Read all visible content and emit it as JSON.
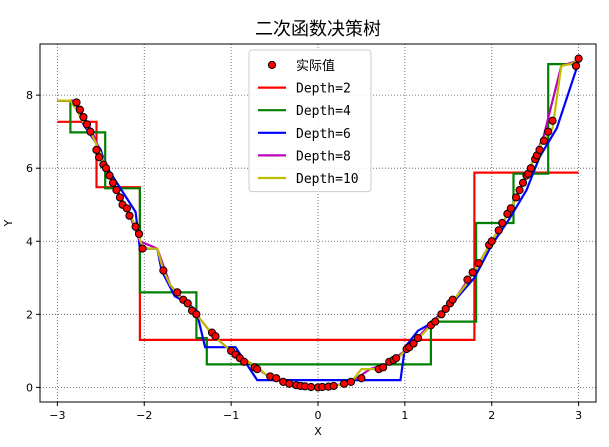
{
  "chart_data": {
    "type": "line",
    "title": "二次函数决策树",
    "xlabel": "X",
    "ylabel": "Y",
    "xlim": [
      -3.2,
      3.2
    ],
    "ylim": [
      -0.4,
      9.4
    ],
    "xticks": [
      -3,
      -2,
      -1,
      0,
      1,
      2,
      3
    ],
    "yticks": [
      0,
      2,
      4,
      6,
      8
    ],
    "grid": true,
    "legend_position": "top-center",
    "scatter": {
      "name": "实际值",
      "color": "#ff0000",
      "edge_color": "#000000",
      "x": [
        -2.78,
        -2.74,
        -2.7,
        -2.66,
        -2.62,
        -2.55,
        -2.52,
        -2.47,
        -2.44,
        -2.4,
        -2.36,
        -2.32,
        -2.28,
        -2.25,
        -2.2,
        -2.17,
        -2.1,
        -2.06,
        -2.02,
        -1.78,
        -1.62,
        -1.55,
        -1.5,
        -1.45,
        -1.4,
        -1.22,
        -1.18,
        -1.0,
        -0.95,
        -0.9,
        -0.85,
        -0.73,
        -0.7,
        -0.55,
        -0.48,
        -0.4,
        -0.33,
        -0.25,
        -0.2,
        -0.15,
        -0.08,
        0.0,
        0.05,
        0.12,
        0.18,
        0.3,
        0.38,
        0.5,
        0.7,
        0.75,
        0.82,
        0.87,
        0.9,
        1.02,
        1.05,
        1.1,
        1.15,
        1.3,
        1.35,
        1.42,
        1.47,
        1.52,
        1.55,
        1.72,
        1.78,
        1.85,
        1.97,
        2.0,
        2.08,
        2.12,
        2.18,
        2.22,
        2.28,
        2.32,
        2.36,
        2.4,
        2.42,
        2.45,
        2.5,
        2.52,
        2.55,
        2.6,
        2.65,
        2.7,
        2.97,
        3.0
      ],
      "y": [
        7.8,
        7.6,
        7.4,
        7.2,
        7.0,
        6.5,
        6.3,
        6.1,
        6.0,
        5.8,
        5.6,
        5.4,
        5.2,
        5.0,
        4.9,
        4.7,
        4.4,
        4.2,
        3.8,
        3.2,
        2.6,
        2.4,
        2.3,
        2.1,
        2.0,
        1.5,
        1.4,
        1.0,
        0.9,
        0.8,
        0.7,
        0.55,
        0.5,
        0.3,
        0.25,
        0.15,
        0.1,
        0.06,
        0.04,
        0.03,
        0.01,
        0.0,
        0.01,
        0.02,
        0.04,
        0.1,
        0.15,
        0.25,
        0.5,
        0.55,
        0.7,
        0.75,
        0.8,
        1.05,
        1.1,
        1.2,
        1.35,
        1.7,
        1.8,
        2.0,
        2.15,
        2.3,
        2.4,
        2.95,
        3.15,
        3.4,
        3.9,
        4.0,
        4.3,
        4.5,
        4.75,
        4.9,
        5.2,
        5.4,
        5.6,
        5.8,
        5.85,
        6.0,
        6.25,
        6.35,
        6.5,
        6.75,
        7.0,
        7.3,
        8.8,
        9.0
      ]
    },
    "series": [
      {
        "name": "Depth=2",
        "color": "#ff0000",
        "x": [
          -3.0,
          -2.55,
          -2.55,
          -2.05,
          -2.05,
          1.8,
          1.8,
          3.0
        ],
        "y": [
          7.27,
          7.27,
          5.48,
          5.48,
          1.3,
          1.3,
          5.88,
          5.88
        ]
      },
      {
        "name": "Depth=4",
        "color": "#008000",
        "x": [
          -3.0,
          -2.85,
          -2.85,
          -2.45,
          -2.45,
          -2.05,
          -2.05,
          -1.4,
          -1.4,
          -1.28,
          -1.28,
          1.3,
          1.3,
          1.82,
          1.82,
          2.25,
          2.25,
          2.65,
          2.65,
          3.0
        ],
        "y": [
          7.85,
          7.85,
          6.98,
          6.98,
          5.45,
          5.45,
          2.6,
          2.6,
          1.35,
          1.35,
          0.63,
          0.63,
          1.8,
          1.8,
          4.5,
          4.5,
          5.85,
          5.85,
          8.85,
          8.85
        ],
        "smooth_regions": []
      },
      {
        "name": "Depth=6",
        "color": "#0000ff",
        "x": [
          -3.0,
          -2.8,
          -2.7,
          -2.5,
          -2.45,
          -2.1,
          -2.05,
          -1.85,
          -1.8,
          -1.65,
          -1.5,
          -1.4,
          -1.3,
          -1.0,
          -0.95,
          -0.7,
          -0.6,
          0.95,
          1.0,
          1.15,
          1.3,
          1.45,
          1.6,
          1.8,
          2.0,
          2.2,
          2.4,
          2.55,
          2.75,
          3.0
        ],
        "y": [
          7.85,
          7.85,
          7.2,
          6.5,
          6.1,
          4.8,
          3.8,
          3.8,
          3.2,
          2.5,
          2.3,
          2.1,
          1.1,
          1.1,
          1.1,
          0.2,
          0.2,
          0.2,
          1.1,
          1.55,
          1.75,
          2.1,
          2.45,
          3.0,
          3.9,
          4.6,
          5.4,
          6.3,
          7.1,
          8.9
        ]
      },
      {
        "name": "Depth=8",
        "color": "#bf00bf",
        "x": [
          -3.0,
          -2.8,
          -2.6,
          -2.4,
          -2.2,
          -2.05,
          -1.85,
          -1.7,
          -1.55,
          -1.4,
          -1.2,
          -1.0,
          -0.8,
          -0.6,
          -0.4,
          -0.2,
          0.0,
          0.2,
          0.4,
          0.6,
          0.8,
          1.0,
          1.2,
          1.4,
          1.6,
          1.8,
          2.0,
          2.2,
          2.4,
          2.6,
          2.8,
          3.0
        ],
        "y": [
          7.85,
          7.85,
          7.0,
          5.8,
          4.9,
          4.0,
          3.8,
          2.8,
          2.4,
          2.0,
          1.4,
          1.0,
          0.7,
          0.35,
          0.18,
          0.05,
          0.0,
          0.05,
          0.18,
          0.5,
          0.65,
          1.0,
          1.5,
          2.0,
          2.5,
          3.2,
          4.0,
          4.8,
          5.8,
          6.9,
          8.8,
          8.95
        ]
      },
      {
        "name": "Depth=10",
        "color": "#bfbf00",
        "x": [
          -3.0,
          -2.85,
          -2.78,
          -2.7,
          -2.6,
          -2.5,
          -2.4,
          -2.3,
          -2.2,
          -2.1,
          -2.02,
          -1.95,
          -1.85,
          -1.78,
          -1.7,
          -1.6,
          -1.5,
          -1.4,
          -1.3,
          -1.2,
          -1.1,
          -1.0,
          -0.9,
          -0.8,
          -0.7,
          -0.6,
          -0.5,
          -0.4,
          -0.3,
          -0.2,
          -0.1,
          0.0,
          0.1,
          0.2,
          0.3,
          0.4,
          0.5,
          0.6,
          0.7,
          0.8,
          0.9,
          1.0,
          1.1,
          1.2,
          1.3,
          1.4,
          1.5,
          1.6,
          1.7,
          1.8,
          1.9,
          2.0,
          2.1,
          2.2,
          2.3,
          2.4,
          2.5,
          2.6,
          2.7,
          2.8,
          2.9,
          3.0
        ],
        "y": [
          7.85,
          7.85,
          7.6,
          7.25,
          6.9,
          6.4,
          5.8,
          5.3,
          4.9,
          4.4,
          3.85,
          3.8,
          3.8,
          3.2,
          2.8,
          2.5,
          2.3,
          2.0,
          1.7,
          1.4,
          1.2,
          1.0,
          0.85,
          0.7,
          0.55,
          0.35,
          0.25,
          0.18,
          0.1,
          0.05,
          0.01,
          0.0,
          0.01,
          0.04,
          0.1,
          0.2,
          0.5,
          0.5,
          0.5,
          0.65,
          0.75,
          1.0,
          1.2,
          1.45,
          1.7,
          1.95,
          2.2,
          2.5,
          2.8,
          3.2,
          3.6,
          4.0,
          4.4,
          4.8,
          5.3,
          5.8,
          6.35,
          6.8,
          7.1,
          8.8,
          8.85,
          8.95
        ]
      }
    ]
  }
}
